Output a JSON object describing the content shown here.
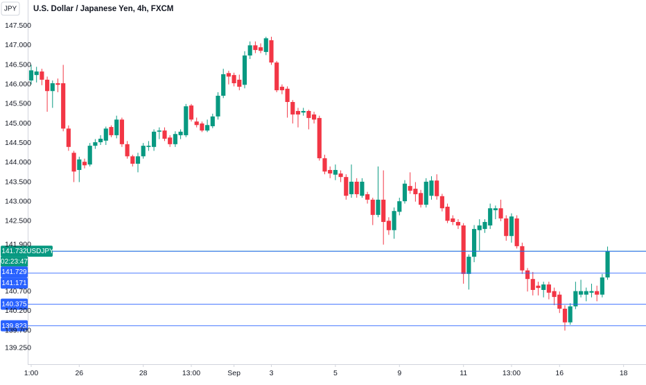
{
  "header": {
    "currency": "JPY",
    "title": "U.S. Dollar / Japanese Yen, 4h, FXCM"
  },
  "chart_data": {
    "type": "candlestick",
    "up_color": "#089981",
    "down_color": "#f23645",
    "ylim": [
      138.84,
      148.16
    ],
    "yticks": [
      {
        "value": 147.5,
        "label": "147.500"
      },
      {
        "value": 147,
        "label": "147.000"
      },
      {
        "value": 146.5,
        "label": "146.500"
      },
      {
        "value": 146,
        "label": "146.000"
      },
      {
        "value": 145.5,
        "label": "145.500"
      },
      {
        "value": 145,
        "label": "145.000"
      },
      {
        "value": 144.5,
        "label": "144.500"
      },
      {
        "value": 144,
        "label": "144.000"
      },
      {
        "value": 143.5,
        "label": "143.500"
      },
      {
        "value": 143,
        "label": "143.000"
      },
      {
        "value": 142.5,
        "label": "142.500"
      },
      {
        "value": 141.9,
        "label": "141.900"
      },
      {
        "value": 140.7,
        "label": "140.700"
      },
      {
        "value": 140.2,
        "label": "140.200"
      },
      {
        "value": 139.7,
        "label": "139.700"
      },
      {
        "value": 139.25,
        "label": "139.250"
      }
    ],
    "xlim": [
      -0.65,
      115.2
    ],
    "xticks": [
      {
        "value": 0,
        "label": "1:00"
      },
      {
        "value": 9,
        "label": "26"
      },
      {
        "value": 21,
        "label": "28"
      },
      {
        "value": 30,
        "label": "13:00"
      },
      {
        "value": 38,
        "label": "Sep"
      },
      {
        "value": 45,
        "label": "3"
      },
      {
        "value": 57,
        "label": "5"
      },
      {
        "value": 69,
        "label": "9"
      },
      {
        "value": 81,
        "label": "11"
      },
      {
        "value": 90,
        "label": "13:00"
      },
      {
        "value": 99,
        "label": "16"
      },
      {
        "value": 111,
        "label": "18"
      }
    ],
    "x": [
      0,
      1,
      2,
      3,
      4,
      5,
      6,
      7,
      8,
      9,
      10,
      11,
      12,
      13,
      14,
      15,
      16,
      17,
      18,
      19,
      20,
      21,
      22,
      23,
      24,
      25,
      26,
      27,
      28,
      29,
      30,
      31,
      32,
      33,
      34,
      35,
      36,
      37,
      38,
      39,
      40,
      41,
      42,
      43,
      44,
      45,
      46,
      47,
      48,
      49,
      50,
      51,
      52,
      53,
      54,
      55,
      56,
      57,
      58,
      59,
      60,
      61,
      62,
      63,
      64,
      65,
      66,
      67,
      68,
      69,
      70,
      71,
      72,
      73,
      74,
      75,
      76,
      77,
      78,
      79,
      80,
      81,
      82,
      83,
      84,
      85,
      86,
      87,
      88,
      89,
      90,
      91,
      92,
      93,
      94,
      95,
      96,
      97,
      98,
      99,
      100,
      101,
      102,
      103,
      104,
      105,
      106,
      107,
      108
    ],
    "open": [
      146.1,
      146.24,
      146.33,
      146.12,
      145.83,
      146.03,
      146.03,
      144.87,
      144.25,
      143.81,
      144.02,
      143.95,
      144.43,
      144.52,
      144.56,
      144.91,
      144.7,
      145.1,
      144.47,
      144.16,
      143.97,
      144.16,
      144.4,
      144.4,
      144.79,
      144.82,
      144.64,
      144.47,
      144.7,
      144.7,
      145.46,
      145.05,
      145.0,
      144.82,
      144.93,
      145.18,
      145.71,
      146.29,
      146.24,
      146.12,
      145.99,
      146.74,
      147.0,
      146.95,
      146.83,
      147.13,
      146.56,
      145.94,
      145.89,
      145.55,
      145.32,
      145.28,
      145.32,
      145.23,
      145.14,
      144.11,
      143.81,
      143.69,
      143.72,
      143.63,
      143.19,
      143.51,
      143.15,
      143.19,
      143.05,
      142.66,
      143.05,
      142.51,
      142.27,
      142.74,
      143.01,
      143.4,
      143.33,
      143.22,
      142.92,
      143.15,
      143.54,
      143.14,
      142.87,
      142.57,
      142.48,
      142.39,
      141.15,
      141.59,
      142.27,
      142.3,
      142.39,
      142.78,
      142.83,
      142.57,
      142.12,
      142.57,
      141.86,
      141.24,
      141.02,
      140.85,
      140.74,
      140.88,
      140.71,
      140.62,
      140.26,
      139.91,
      140.32,
      140.62,
      140.62,
      140.67,
      140.71,
      140.62,
      141.06
    ],
    "high": [
      146.5,
      146.45,
      146.4,
      146.2,
      146.1,
      146.15,
      146.5,
      144.95,
      144.3,
      144.15,
      144.1,
      144.5,
      144.6,
      144.7,
      144.92,
      144.95,
      145.2,
      145.15,
      144.55,
      144.2,
      144.25,
      144.5,
      144.55,
      144.85,
      144.9,
      144.9,
      144.7,
      144.8,
      144.85,
      145.5,
      145.5,
      145.15,
      145.05,
      145.1,
      145.25,
      145.8,
      146.4,
      146.35,
      146.3,
      146.25,
      146.85,
      147.1,
      147.1,
      147.05,
      147.22,
      147.22,
      146.6,
      146.0,
      145.95,
      145.6,
      145.4,
      145.4,
      145.35,
      145.3,
      145.2,
      144.2,
      143.9,
      143.95,
      143.8,
      143.7,
      143.95,
      143.6,
      143.6,
      143.25,
      143.1,
      143.9,
      143.8,
      142.6,
      142.85,
      143.1,
      143.55,
      143.75,
      143.5,
      143.3,
      143.6,
      143.65,
      143.7,
      143.2,
      142.95,
      142.65,
      142.55,
      142.45,
      141.65,
      142.4,
      142.55,
      142.55,
      142.95,
      142.9,
      143.05,
      142.65,
      142.7,
      142.65,
      141.95,
      141.3,
      141.2,
      140.95,
      140.95,
      140.95,
      140.8,
      140.7,
      140.35,
      140.4,
      140.95,
      141.0,
      140.8,
      140.9,
      140.85,
      141.15,
      141.85
    ],
    "low": [
      146.0,
      146.05,
      145.98,
      145.3,
      145.4,
      145.8,
      144.8,
      144.3,
      143.5,
      143.5,
      143.85,
      143.9,
      144.35,
      144.45,
      144.45,
      144.65,
      144.62,
      144.4,
      144.1,
      143.9,
      143.75,
      144.1,
      144.3,
      144.3,
      144.6,
      144.55,
      144.4,
      144.4,
      144.6,
      144.65,
      145.05,
      144.9,
      144.78,
      144.78,
      144.88,
      145.1,
      145.65,
      146.0,
      145.95,
      145.85,
      145.9,
      146.65,
      146.8,
      146.8,
      146.75,
      146.5,
      145.8,
      145.75,
      145.15,
      145.0,
      144.9,
      145.2,
      144.85,
      145.0,
      144.05,
      143.7,
      143.6,
      143.55,
      143.5,
      143.05,
      143.1,
      143.1,
      143.1,
      142.95,
      142.4,
      142.6,
      141.9,
      142.15,
      142.05,
      142.65,
      142.95,
      143.2,
      143.0,
      142.85,
      142.85,
      143.05,
      143.05,
      142.75,
      142.45,
      142.4,
      142.3,
      140.9,
      140.75,
      141.45,
      141.75,
      142.2,
      142.3,
      142.55,
      142.5,
      142.0,
      141.95,
      141.8,
      141.15,
      140.7,
      140.6,
      140.6,
      140.55,
      140.5,
      140.35,
      140.15,
      139.7,
      139.85,
      140.25,
      140.55,
      140.45,
      140.55,
      140.45,
      140.55,
      141.0
    ],
    "close": [
      146.36,
      146.33,
      146.12,
      145.83,
      146.03,
      145.99,
      144.87,
      144.4,
      143.77,
      144.08,
      143.93,
      144.43,
      144.52,
      144.61,
      144.87,
      144.7,
      145.1,
      144.47,
      144.16,
      143.97,
      144.16,
      144.43,
      144.43,
      144.79,
      144.82,
      144.61,
      144.47,
      144.73,
      144.79,
      145.44,
      145.1,
      144.96,
      144.82,
      144.96,
      145.18,
      145.71,
      146.26,
      146.2,
      146.03,
      145.94,
      146.74,
      147.0,
      146.88,
      146.86,
      147.18,
      146.56,
      145.85,
      145.85,
      145.55,
      145.23,
      145.23,
      145.32,
      145.14,
      145.1,
      144.11,
      143.77,
      143.72,
      143.81,
      143.63,
      143.15,
      143.51,
      143.19,
      143.51,
      143.05,
      142.66,
      143.05,
      142.48,
      142.27,
      142.76,
      143.01,
      143.46,
      143.28,
      143.19,
      142.92,
      143.51,
      143.54,
      143.14,
      142.83,
      142.51,
      142.48,
      142.39,
      141.15,
      141.59,
      142.3,
      142.39,
      142.48,
      142.83,
      142.83,
      142.57,
      142.12,
      142.62,
      141.86,
      141.24,
      141.02,
      140.74,
      140.79,
      140.88,
      140.67,
      140.56,
      140.26,
      139.91,
      140.32,
      140.71,
      140.71,
      140.71,
      140.71,
      140.62,
      141.06,
      141.732
    ],
    "lines": [
      {
        "value": 141.732,
        "color": "#089981",
        "name": "USDJPY",
        "countdown": "02:23:47"
      },
      {
        "value": 141.729,
        "color": "#2962ff"
      },
      {
        "value": 141.171,
        "color": "#2962ff"
      },
      {
        "value": 140.375,
        "color": "#2962ff"
      },
      {
        "value": 139.823,
        "color": "#2962ff"
      }
    ]
  }
}
